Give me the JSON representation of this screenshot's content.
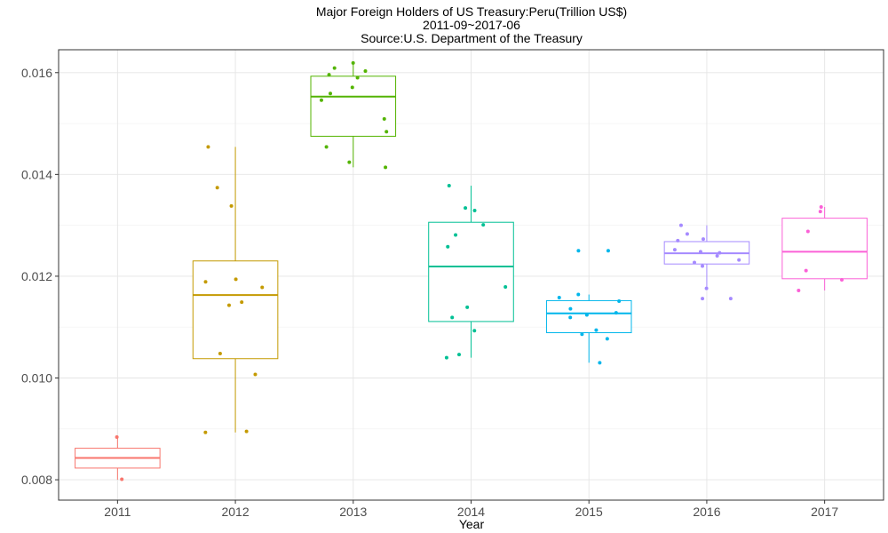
{
  "chart_data": {
    "type": "boxplot",
    "title": "Major Foreign Holders of US Treasury:Peru(Trillion US$)",
    "subtitle": "2011-09~2017-06",
    "source": "Source:U.S. Department of the Treasury",
    "xlabel": "Year",
    "ylabel": "",
    "ylim": [
      0.0076,
      0.01645
    ],
    "yticks": [
      0.008,
      0.01,
      0.012,
      0.014,
      0.016
    ],
    "ytick_labels": [
      "0.008",
      "0.010",
      "0.012",
      "0.014",
      "0.016"
    ],
    "grid": true,
    "legend": "none",
    "categories": [
      "2011",
      "2012",
      "2013",
      "2014",
      "2015",
      "2016",
      "2017"
    ],
    "colors": [
      "#F8766D",
      "#C49A00",
      "#53B400",
      "#00C094",
      "#00B6EB",
      "#A58AFF",
      "#FB61D7"
    ],
    "boxes": [
      {
        "whisker_low": 0.008,
        "q1": 0.00823,
        "median": 0.00843,
        "q3": 0.00862,
        "whisker_high": 0.00883
      },
      {
        "whisker_low": 0.00893,
        "q1": 0.01038,
        "median": 0.01163,
        "q3": 0.0123,
        "whisker_high": 0.01454
      },
      {
        "whisker_low": 0.01414,
        "q1": 0.01475,
        "median": 0.01553,
        "q3": 0.01593,
        "whisker_high": 0.01619
      },
      {
        "whisker_low": 0.0104,
        "q1": 0.01111,
        "median": 0.01219,
        "q3": 0.01306,
        "whisker_high": 0.01378
      },
      {
        "whisker_low": 0.0103,
        "q1": 0.01089,
        "median": 0.01127,
        "q3": 0.01152,
        "whisker_high": 0.01164
      },
      {
        "whisker_low": 0.01176,
        "q1": 0.01224,
        "median": 0.01245,
        "q3": 0.01268,
        "whisker_high": 0.013
      },
      {
        "whisker_low": 0.01172,
        "q1": 0.01195,
        "median": 0.01248,
        "q3": 0.01314,
        "whisker_high": 0.01336
      }
    ],
    "points": [
      [
        0.00884,
        0.00801
      ],
      [
        0.01454,
        0.01374,
        0.01338,
        0.01194,
        0.01189,
        0.01178,
        0.01149,
        0.01143,
        0.01048,
        0.01007,
        0.00895,
        0.00893
      ],
      [
        0.01619,
        0.01609,
        0.01603,
        0.01596,
        0.0159,
        0.01571,
        0.01559,
        0.01546,
        0.01509,
        0.01484,
        0.01454,
        0.01424,
        0.01414
      ],
      [
        0.01378,
        0.01334,
        0.01329,
        0.01301,
        0.01281,
        0.01258,
        0.01179,
        0.01139,
        0.01119,
        0.01093,
        0.01046,
        0.0104
      ],
      [
        0.0125,
        0.0125,
        0.01164,
        0.01158,
        0.01151,
        0.01136,
        0.01128,
        0.01124,
        0.01119,
        0.01094,
        0.01086,
        0.01077,
        0.0103
      ],
      [
        0.013,
        0.01283,
        0.01273,
        0.0127,
        0.01252,
        0.01248,
        0.01246,
        0.0124,
        0.01232,
        0.01227,
        0.0122,
        0.01176,
        0.01156,
        0.01156
      ],
      [
        0.01336,
        0.01327,
        0.01288,
        0.01211,
        0.01193,
        0.01172
      ]
    ]
  }
}
